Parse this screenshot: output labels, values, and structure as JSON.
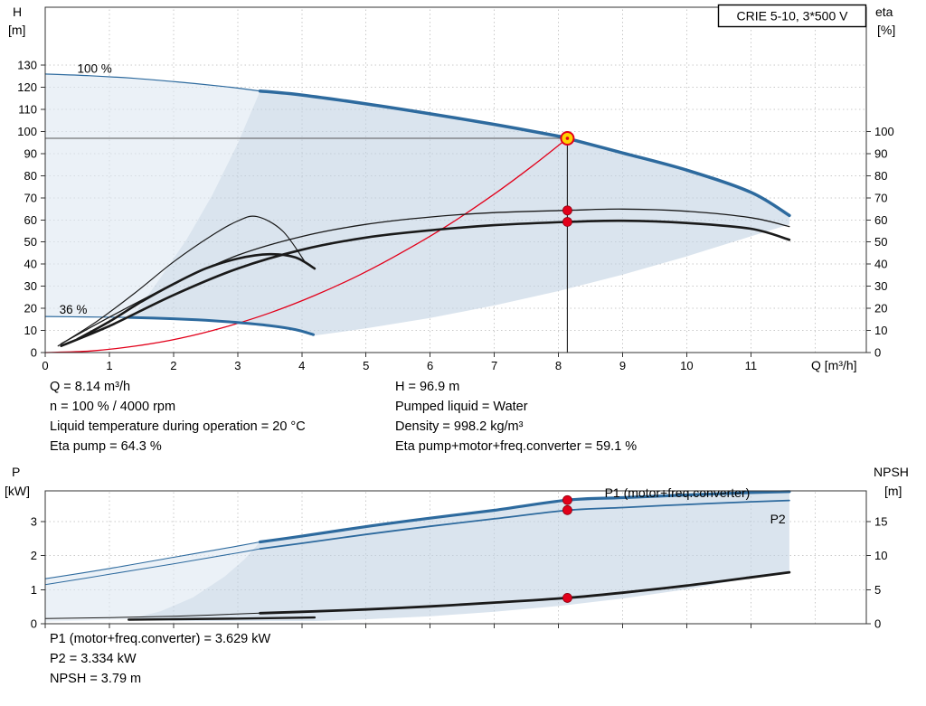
{
  "pump": {
    "model": "CRIE 5-10, 3*500 V"
  },
  "title_box": {
    "label": "CRIE 5-10, 3*500 V"
  },
  "axis_titles": {
    "qh_left_1": "H",
    "qh_left_2": "[m]",
    "qh_right_1": "eta",
    "qh_right_2": "[%]",
    "qh_x": "Q [m³/h]",
    "pw_left_1": "P",
    "pw_left_2": "[kW]",
    "pw_right_1": "NPSH",
    "pw_right_2": "[m]"
  },
  "annotations": {
    "block1_col1": [
      "Q = 8.14 m³/h",
      "n = 100 % / 4000 rpm",
      "Liquid temperature during operation = 20 °C",
      "Eta pump = 64.3 %"
    ],
    "block1_col2": [
      "H = 96.9 m",
      "Pumped liquid = Water",
      "Density = 998.2 kg/m³",
      "Eta pump+motor+freq.converter = 59.1 %"
    ],
    "block2": [
      "P1 (motor+freq.converter) = 3.629 kW",
      "P2 = 3.334 kW",
      "NPSH = 3.79 m"
    ]
  },
  "colors": {
    "curve_blue": "#2d6a9e",
    "black": "#1a1a1a",
    "red": "#e2001a",
    "duty_fill": "#ffd200",
    "grid": "#c9c9c9",
    "frame": "#333333",
    "envelope": "#c2d2e2",
    "envelope_light": "#dde8f1",
    "crosshair": "#555555",
    "label_blue": "#2d6a9e"
  },
  "chart_data": {
    "type": "line",
    "duty_point": {
      "Q_m3h": 8.14,
      "H_m": 96.9,
      "n_pct": 100,
      "n_rpm": 4000,
      "liquid_temp_C": 20,
      "eta_pump_pct": 64.3,
      "eta_total_pct": 59.1,
      "pumped_liquid": "Water",
      "density_kg_m3": 998.2,
      "P1_kW": 3.629,
      "P2_kW": 3.334,
      "NPSH_m": 3.79
    },
    "charts": {
      "qh": {
        "scales": {
          "x": {
            "min": 0,
            "max": 12.8
          },
          "H": {
            "min": 0,
            "max": 156.2
          },
          "eta": {
            "min": 0,
            "max": 156.2
          }
        },
        "axes": {
          "left": {
            "scale": "H",
            "ticks": [
              0,
              10,
              20,
              30,
              40,
              50,
              60,
              70,
              80,
              90,
              100,
              110,
              120,
              130
            ]
          },
          "right": {
            "scale": "eta",
            "ticks": [
              0,
              10,
              20,
              30,
              40,
              50,
              60,
              70,
              80,
              90,
              100
            ]
          },
          "bottom": {
            "ticks": [
              0,
              1,
              2,
              3,
              4,
              5,
              6,
              7,
              8,
              9,
              10,
              11
            ],
            "labels": true
          }
        },
        "grid": {
          "v": [
            1,
            2,
            3,
            4,
            5,
            6,
            7,
            8,
            9,
            10,
            11,
            12
          ],
          "h": {
            "scale": "H",
            "values": [
              10,
              20,
              30,
              40,
              50,
              60,
              70,
              80,
              90,
              100,
              110,
              120,
              130
            ]
          }
        }
      },
      "pw": {
        "scales": {
          "x": {
            "min": 0,
            "max": 12.8
          },
          "P": {
            "min": 0,
            "max": 3.9
          },
          "NPSH": {
            "min": 0,
            "max": 19.5
          }
        },
        "axes": {
          "left": {
            "scale": "P",
            "ticks": [
              0,
              1,
              2,
              3
            ]
          },
          "right": {
            "scale": "NPSH",
            "ticks": [
              0,
              5,
              10,
              15
            ]
          },
          "bottom": {
            "ticks": [
              0,
              1,
              2,
              3,
              4,
              5,
              6,
              7,
              8,
              9,
              10,
              11
            ],
            "labels": false
          }
        },
        "grid": {
          "v": [
            1,
            2,
            3,
            4,
            5,
            6,
            7,
            8,
            9,
            10,
            11,
            12
          ],
          "h": {
            "scale": "P",
            "values": [
              1,
              2,
              3
            ]
          }
        }
      }
    },
    "polygons": [
      {
        "chart": "qh",
        "name": "operating-envelope-light",
        "scale": "H",
        "fill": "envelope_light",
        "opacity": 0.6,
        "pts": [
          [
            0,
            126
          ],
          [
            1,
            124.5
          ],
          [
            2,
            122.5
          ],
          [
            3,
            119.7
          ],
          [
            3.35,
            118.3
          ],
          [
            3,
            94.5
          ],
          [
            2.6,
            71
          ],
          [
            2.2,
            51
          ],
          [
            1.8,
            34
          ],
          [
            1.35,
            16
          ],
          [
            1,
            16
          ],
          [
            0.5,
            16.2
          ],
          [
            0,
            16.3
          ]
        ]
      },
      {
        "chart": "qh",
        "name": "operating-envelope",
        "scale": "H",
        "fill": "envelope",
        "opacity": 0.6,
        "pts": [
          [
            1.35,
            15.9
          ],
          [
            1.8,
            34
          ],
          [
            2.2,
            51
          ],
          [
            2.6,
            71
          ],
          [
            3,
            94.5
          ],
          [
            3.35,
            118.3
          ],
          [
            4,
            116.5
          ],
          [
            5,
            112.5
          ],
          [
            6,
            108
          ],
          [
            7,
            103.2
          ],
          [
            8,
            97.9
          ],
          [
            8.14,
            96.9
          ],
          [
            9,
            90.3
          ],
          [
            10,
            82.5
          ],
          [
            11,
            72.5
          ],
          [
            11.6,
            62
          ],
          [
            11.6,
            58
          ],
          [
            10,
            43.5
          ],
          [
            9,
            35.2
          ],
          [
            8,
            27.8
          ],
          [
            7,
            21.3
          ],
          [
            6,
            15.6
          ],
          [
            5,
            10.9
          ],
          [
            4.18,
            7.6
          ],
          [
            3.9,
            10.4
          ],
          [
            3.5,
            12.2
          ],
          [
            3,
            13.6
          ],
          [
            2.5,
            14.6
          ],
          [
            2,
            15.3
          ]
        ]
      },
      {
        "chart": "pw",
        "name": "power-envelope-light",
        "scale": "P",
        "fill": "envelope_light",
        "opacity": 0.6,
        "pts": [
          [
            0,
            1.32
          ],
          [
            1,
            1.62
          ],
          [
            2,
            1.95
          ],
          [
            3,
            2.28
          ],
          [
            3.35,
            2.4
          ],
          [
            3.1,
            1.88
          ],
          [
            2.8,
            1.39
          ],
          [
            2.3,
            0.77
          ],
          [
            1.8,
            0.37
          ],
          [
            1.3,
            0.13
          ],
          [
            0,
            0.06
          ]
        ]
      },
      {
        "chart": "pw",
        "name": "power-envelope",
        "scale": "P",
        "fill": "envelope",
        "opacity": 0.6,
        "pts": [
          [
            1.3,
            0.13
          ],
          [
            1.8,
            0.37
          ],
          [
            2.3,
            0.77
          ],
          [
            2.8,
            1.39
          ],
          [
            3.1,
            1.88
          ],
          [
            3.35,
            2.4
          ],
          [
            4,
            2.57
          ],
          [
            5,
            2.85
          ],
          [
            6,
            3.1
          ],
          [
            7,
            3.33
          ],
          [
            8.14,
            3.63
          ],
          [
            9,
            3.7
          ],
          [
            10,
            3.78
          ],
          [
            11,
            3.85
          ],
          [
            11.6,
            3.88
          ],
          [
            11.6,
            1.55
          ],
          [
            10,
            1.01
          ],
          [
            9,
            0.74
          ],
          [
            8,
            0.52
          ],
          [
            7,
            0.35
          ],
          [
            6,
            0.22
          ],
          [
            5,
            0.13
          ],
          [
            4.2,
            0.08
          ],
          [
            2.5,
            0.08
          ],
          [
            1.3,
            0.1
          ]
        ]
      }
    ],
    "series": [
      {
        "chart": "qh",
        "name": "duty-crosshair-horizontal",
        "scale": "H",
        "color": "crosshair",
        "w": 0.9,
        "x": [
          0,
          8.14
        ],
        "y": [
          96.9,
          96.9
        ]
      },
      {
        "chart": "qh",
        "name": "duty-crosshair-vertical",
        "scale": "H",
        "color": "black",
        "w": 1.1,
        "x": [
          8.14,
          8.14
        ],
        "y": [
          0,
          96.9
        ]
      },
      {
        "chart": "qh",
        "name": "control-curve-red",
        "scale": "H",
        "color": "red",
        "w": 1.3,
        "x": [
          0,
          0.7,
          1.4,
          2.1,
          2.8,
          3.5,
          4.2,
          4.9,
          5.6,
          6.3,
          7,
          7.6,
          8.14
        ],
        "y": [
          0,
          0.7,
          2.9,
          6.4,
          11.5,
          17.9,
          25.8,
          35.1,
          45.9,
          58,
          71.7,
          84.5,
          96.9
        ]
      },
      {
        "chart": "qh",
        "name": "head-curve-100pct-outside",
        "scale": "H",
        "color": "curve_blue",
        "w": 1.2,
        "x": [
          0,
          0.7,
          1.4,
          2.1,
          2.8,
          3.35
        ],
        "y": [
          126,
          125.2,
          124,
          122.3,
          120.3,
          118.3
        ]
      },
      {
        "chart": "qh",
        "name": "head-curve-100pct",
        "scale": "H",
        "color": "curve_blue",
        "w": 3.5,
        "x": [
          3.35,
          4,
          5,
          6,
          7,
          8,
          8.14,
          9,
          10,
          11,
          11.6
        ],
        "y": [
          118.3,
          116.5,
          112.5,
          108,
          103.2,
          97.9,
          96.9,
          90.3,
          82.5,
          72.5,
          62
        ]
      },
      {
        "chart": "qh",
        "name": "head-curve-36pct-outside",
        "scale": "H",
        "color": "curve_blue",
        "w": 1.2,
        "x": [
          0,
          0.65,
          1.3
        ],
        "y": [
          16.3,
          16.1,
          15.9
        ]
      },
      {
        "chart": "qh",
        "name": "head-curve-36pct",
        "scale": "H",
        "color": "curve_blue",
        "w": 3,
        "x": [
          1.3,
          2,
          2.5,
          3,
          3.5,
          3.9,
          4.18
        ],
        "y": [
          15.9,
          15.3,
          14.6,
          13.6,
          12.2,
          10.4,
          8.1
        ]
      },
      {
        "chart": "qh",
        "name": "eta-curve-reduced-speed-pump",
        "scale": "eta",
        "color": "black",
        "w": 1.2,
        "x": [
          0.2,
          0.8,
          1.4,
          2,
          2.6,
          3,
          3.3,
          3.7,
          4.05
        ],
        "y": [
          3,
          14,
          27,
          41,
          53,
          59.5,
          61.5,
          55,
          41
        ]
      },
      {
        "chart": "qh",
        "name": "eta-curve-reduced-speed-total",
        "scale": "eta",
        "color": "black",
        "w": 2.6,
        "x": [
          0.5,
          1,
          1.5,
          2,
          2.5,
          3,
          3.5,
          3.9,
          4.2
        ],
        "y": [
          6,
          14,
          23,
          31,
          38,
          42.5,
          44.5,
          43,
          38
        ]
      },
      {
        "chart": "qh",
        "name": "eta-curve-pump",
        "scale": "eta",
        "color": "black",
        "w": 1.3,
        "x": [
          0.25,
          1,
          2,
          3,
          4,
          5,
          6,
          7,
          8.14,
          9,
          10,
          11,
          11.6
        ],
        "y": [
          4,
          16,
          31,
          44,
          52.5,
          58,
          61.3,
          63.3,
          64.3,
          64.9,
          63.9,
          61,
          57
        ]
      },
      {
        "chart": "qh",
        "name": "eta-curve-total",
        "scale": "eta",
        "color": "black",
        "w": 2.6,
        "x": [
          0.25,
          1,
          2,
          3,
          4,
          5,
          6,
          7,
          8.14,
          9,
          10,
          11,
          11.6
        ],
        "y": [
          3,
          12,
          26,
          38,
          46.5,
          52,
          55.3,
          57.6,
          59.1,
          59.6,
          58.6,
          56,
          51
        ]
      },
      {
        "chart": "pw",
        "name": "p1-curve-outside",
        "scale": "P",
        "color": "curve_blue",
        "w": 1.1,
        "x": [
          0,
          1,
          2,
          3,
          3.35
        ],
        "y": [
          1.32,
          1.62,
          1.95,
          2.28,
          2.4
        ]
      },
      {
        "chart": "pw",
        "name": "p1-curve",
        "scale": "P",
        "color": "curve_blue",
        "w": 3.2,
        "x": [
          3.35,
          4,
          5,
          6,
          7,
          8.14,
          9,
          10,
          11,
          11.6
        ],
        "y": [
          2.4,
          2.57,
          2.85,
          3.1,
          3.33,
          3.63,
          3.7,
          3.78,
          3.85,
          3.88
        ]
      },
      {
        "chart": "pw",
        "name": "p2-curve-outside",
        "scale": "P",
        "color": "curve_blue",
        "w": 1,
        "x": [
          0,
          1,
          2,
          3,
          3.35
        ],
        "y": [
          1.15,
          1.45,
          1.76,
          2.08,
          2.2
        ]
      },
      {
        "chart": "pw",
        "name": "p2-curve",
        "scale": "P",
        "color": "curve_blue",
        "w": 1.8,
        "x": [
          3.35,
          4,
          5,
          6,
          7,
          8.14,
          9,
          10,
          11,
          11.6
        ],
        "y": [
          2.2,
          2.36,
          2.62,
          2.86,
          3.08,
          3.33,
          3.41,
          3.5,
          3.58,
          3.62
        ]
      },
      {
        "chart": "pw",
        "name": "npsh-curve-outside",
        "scale": "NPSH",
        "color": "black",
        "w": 1,
        "x": [
          0,
          1,
          2,
          3.35
        ],
        "y": [
          0.75,
          0.9,
          1.1,
          1.55
        ]
      },
      {
        "chart": "pw",
        "name": "npsh-curve",
        "scale": "NPSH",
        "color": "black",
        "w": 2.8,
        "x": [
          3.35,
          4,
          5,
          6,
          7,
          8.14,
          9,
          10,
          11,
          11.6
        ],
        "y": [
          1.55,
          1.75,
          2.1,
          2.55,
          3.1,
          3.79,
          4.55,
          5.6,
          6.8,
          7.55
        ]
      },
      {
        "chart": "pw",
        "name": "npsh-curve-36pct",
        "scale": "NPSH",
        "color": "black",
        "w": 2.4,
        "x": [
          1.3,
          2,
          3,
          4.2
        ],
        "y": [
          0.6,
          0.66,
          0.76,
          0.92
        ]
      }
    ],
    "markers": [
      {
        "chart": "qh",
        "name": "duty-point",
        "scale": "H",
        "x": 8.14,
        "y": 96.9,
        "kind": "duty"
      },
      {
        "chart": "qh",
        "name": "eta-pump-dot",
        "scale": "eta",
        "x": 8.14,
        "y": 64.3,
        "kind": "dot"
      },
      {
        "chart": "qh",
        "name": "eta-total-dot",
        "scale": "eta",
        "x": 8.14,
        "y": 59.1,
        "kind": "dot"
      },
      {
        "chart": "pw",
        "name": "p1-dot",
        "scale": "P",
        "x": 8.14,
        "y": 3.629,
        "kind": "dot"
      },
      {
        "chart": "pw",
        "name": "p2-dot",
        "scale": "P",
        "x": 8.14,
        "y": 3.334,
        "kind": "dot"
      },
      {
        "chart": "pw",
        "name": "npsh-dot",
        "scale": "NPSH",
        "x": 8.14,
        "y": 3.79,
        "kind": "dot"
      }
    ],
    "plot_labels": [
      {
        "chart": "qh",
        "name": "speed-100-label",
        "scale": "H",
        "x": 0.5,
        "y": 126.5,
        "text": "100 %",
        "color": "#000000",
        "size": 13.5
      },
      {
        "chart": "qh",
        "name": "speed-36-label",
        "scale": "H",
        "x": 0.22,
        "y": 17.5,
        "text": "36 %",
        "color": "#000000",
        "size": 13.5
      },
      {
        "chart": "pw",
        "name": "p1-curve-label",
        "scale": "P",
        "x": 8.72,
        "y": 3.72,
        "text": "P1 (motor+freq.converter)",
        "color": "label_blue",
        "size": 14
      },
      {
        "chart": "pw",
        "name": "p2-curve-label",
        "scale": "P",
        "x": 11.3,
        "y": 2.95,
        "text": "P2",
        "color": "label_blue",
        "size": 14
      }
    ]
  }
}
